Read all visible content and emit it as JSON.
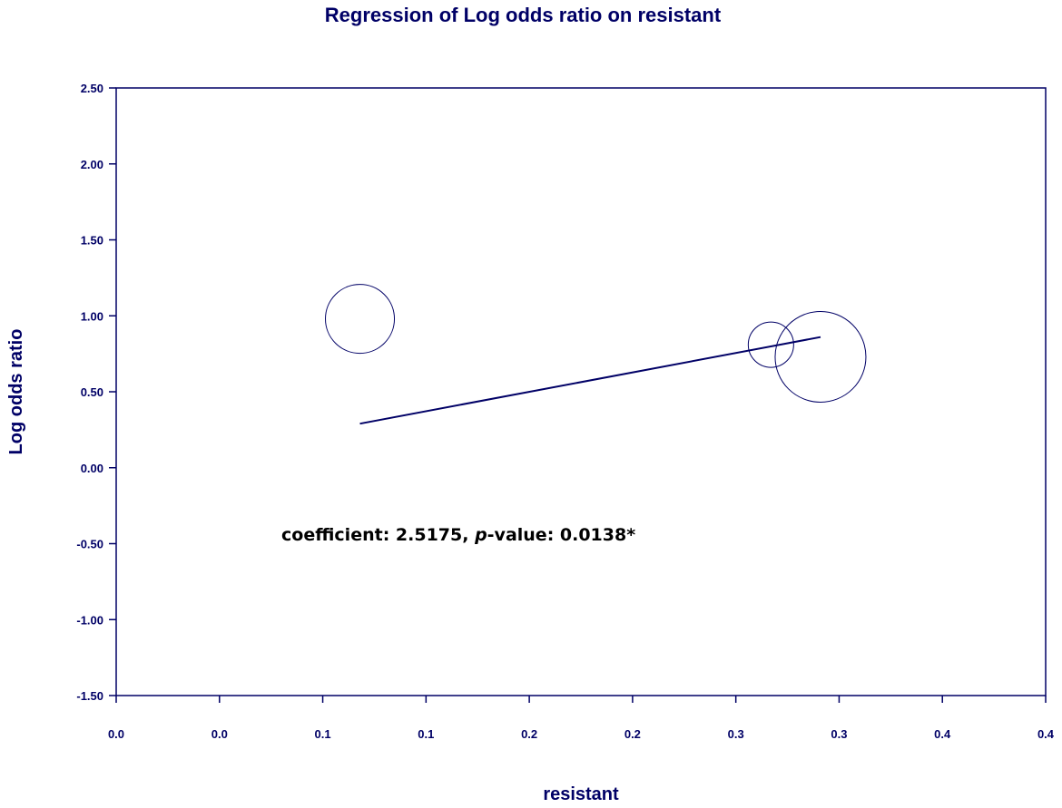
{
  "colors": {
    "primary": "#000066",
    "annotation": "#000000"
  },
  "chart_data": {
    "type": "scatter",
    "title": "Regression of Log odds ratio on resistant",
    "xlabel": "resistant",
    "ylabel": "Log odds ratio",
    "xlim": [
      0.0,
      0.45
    ],
    "ylim": [
      -1.5,
      2.5
    ],
    "x_ticks": [
      {
        "value": 0.0,
        "label": "0.0"
      },
      {
        "value": 0.05,
        "label": "0.0"
      },
      {
        "value": 0.1,
        "label": "0.1"
      },
      {
        "value": 0.15,
        "label": "0.1"
      },
      {
        "value": 0.2,
        "label": "0.2"
      },
      {
        "value": 0.25,
        "label": "0.2"
      },
      {
        "value": 0.3,
        "label": "0.3"
      },
      {
        "value": 0.35,
        "label": "0.3"
      },
      {
        "value": 0.4,
        "label": "0.4"
      },
      {
        "value": 0.45,
        "label": "0.4"
      }
    ],
    "y_ticks": [
      {
        "value": 2.5,
        "label": "2.50"
      },
      {
        "value": 2.0,
        "label": "2.00"
      },
      {
        "value": 1.5,
        "label": "1.50"
      },
      {
        "value": 1.0,
        "label": "1.00"
      },
      {
        "value": 0.5,
        "label": "0.50"
      },
      {
        "value": 0.0,
        "label": "0.00"
      },
      {
        "value": -0.5,
        "label": "-0.50"
      },
      {
        "value": -1.0,
        "label": "-1.00"
      },
      {
        "value": -1.5,
        "label": "-1.50"
      }
    ],
    "points": [
      {
        "x": 0.118,
        "y": 0.98,
        "size": 38
      },
      {
        "x": 0.317,
        "y": 0.81,
        "size": 25
      },
      {
        "x": 0.341,
        "y": 0.73,
        "size": 50
      }
    ],
    "regression_line": {
      "x": [
        0.118,
        0.341
      ],
      "y": [
        0.29,
        0.86
      ]
    },
    "annotation": {
      "part1": "coefficient: 2.5175, ",
      "part2": "p",
      "part3": "-value: 0.0138*",
      "x": 0.08,
      "y": -0.48
    }
  }
}
